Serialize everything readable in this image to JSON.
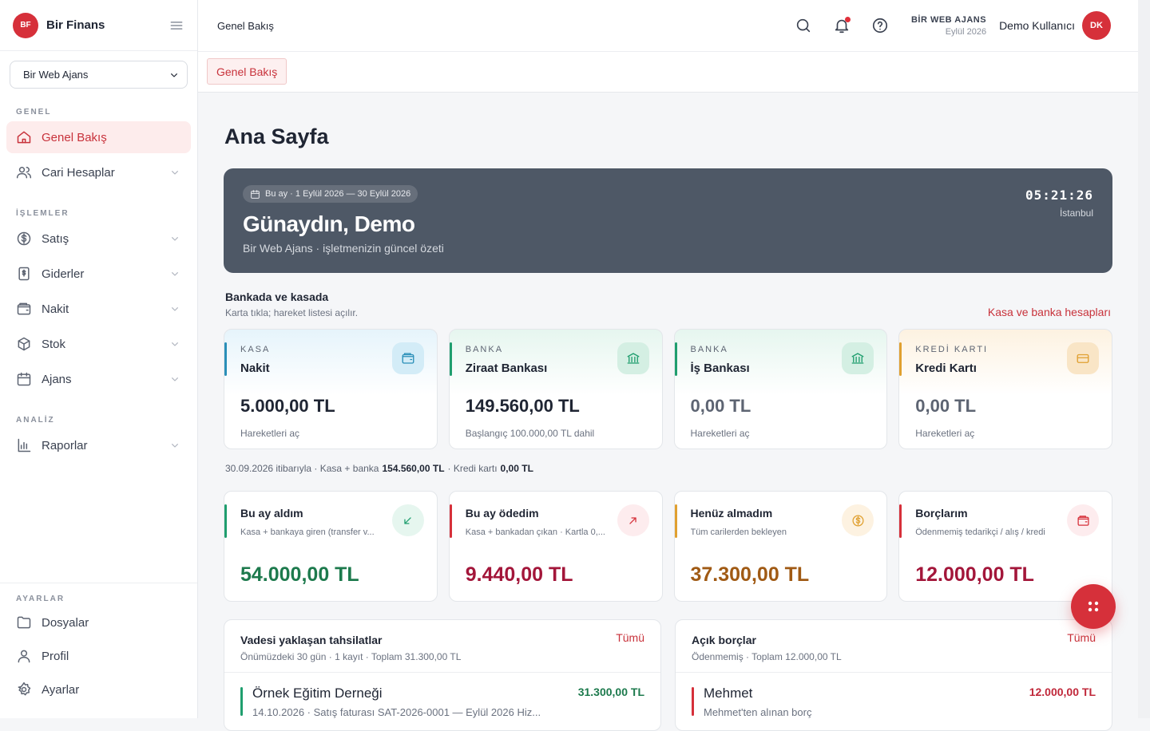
{
  "sidebar": {
    "logo": "BF",
    "brand": "Bir Finans",
    "workspace": "Bir Web Ajans",
    "sections": [
      {
        "title": "GENEL",
        "items": [
          "Genel Bakış",
          "Cari Hesaplar"
        ]
      },
      {
        "title": "İŞLEMLER",
        "items": [
          "Satış",
          "Giderler",
          "Nakit",
          "Stok",
          "Ajans"
        ]
      },
      {
        "title": "ANALİZ",
        "items": [
          "Raporlar"
        ]
      },
      {
        "title": "AYARLAR",
        "items": [
          "Dosyalar",
          "Profil",
          "Ayarlar"
        ]
      }
    ]
  },
  "header": {
    "breadcrumb": "Genel Bakış",
    "company": "BİR WEB AJANS",
    "period": "Eylül 2026",
    "user": "Demo Kullanıcı",
    "avatar": "DK"
  },
  "tabs": [
    "Genel Bakış"
  ],
  "page_title": "Ana Sayfa",
  "hero": {
    "badge": "Bu ay · 1 Eylül 2026 — 30 Eylül 2026",
    "greeting": "Günaydın, Demo",
    "subtitle": "Bir Web Ajans · işletmenizin güncel özeti",
    "time": "05:21:26",
    "city": "İstanbul"
  },
  "balances": {
    "title": "Bankada ve kasada",
    "subtitle": "Karta tıkla; hareket listesi açılır.",
    "link": "Kasa ve banka hesapları",
    "cards": [
      {
        "kind": "KASA",
        "name": "Nakit",
        "amount": "5.000,00 TL",
        "note": "Hareketleri aç"
      },
      {
        "kind": "BANKA",
        "name": "Ziraat Bankası",
        "amount": "149.560,00 TL",
        "note": "Başlangıç 100.000,00 TL dahil"
      },
      {
        "kind": "BANKA",
        "name": "İş Bankası",
        "amount": "0,00 TL",
        "note": "Hareketleri aç"
      },
      {
        "kind": "KREDİ KARTI",
        "name": "Kredi Kartı",
        "amount": "0,00 TL",
        "note": "Hareketleri aç"
      }
    ],
    "summary": {
      "prefix": "30.09.2026 itibarıyla · Kasa + banka",
      "bank_total": "154.560,00 TL",
      "card_label": "· Kredi kartı",
      "card_total": "0,00 TL"
    }
  },
  "metrics": [
    {
      "title": "Bu ay aldım",
      "subtitle": "Kasa + bankaya giren (transfer v...",
      "amount": "54.000,00 TL"
    },
    {
      "title": "Bu ay ödedim",
      "subtitle": "Kasa + bankadan çıkan · Kartla 0,...",
      "amount": "9.440,00 TL"
    },
    {
      "title": "Henüz almadım",
      "subtitle": "Tüm carilerden bekleyen",
      "amount": "37.300,00 TL"
    },
    {
      "title": "Borçlarım",
      "subtitle": "Ödenmemiş tedarikçi / alış / kredi",
      "amount": "12.000,00 TL"
    }
  ],
  "lists": [
    {
      "title": "Vadesi yaklaşan tahsilatlar",
      "link": "Tümü",
      "subtitle": "Önümüzdeki 30 gün · 1 kayıt · Toplam 31.300,00 TL",
      "items": [
        {
          "name": "Örnek Eğitim Derneği",
          "detail": "14.10.2026 · Satış faturası SAT-2026-0001 — Eylül 2026 Hiz...",
          "amount": "31.300,00 TL"
        }
      ]
    },
    {
      "title": "Açık borçlar",
      "link": "Tümü",
      "subtitle": "Ödenmemiş · Toplam 12.000,00 TL",
      "items": [
        {
          "name": "Mehmet",
          "detail": "Mehmet'ten alınan borç",
          "amount": "12.000,00 TL"
        }
      ]
    }
  ]
}
